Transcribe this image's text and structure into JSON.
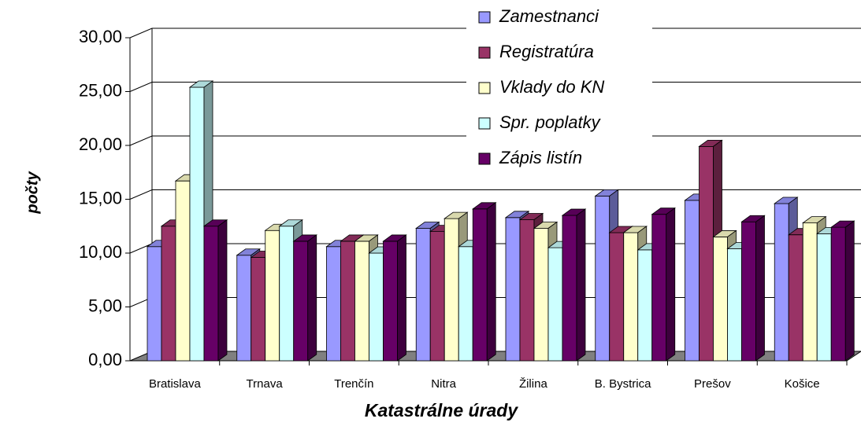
{
  "chart_data": {
    "type": "bar3d",
    "y_label": "počty",
    "x_label": "Katastrálne úrady",
    "categories": [
      "Bratislava",
      "Trnava",
      "Trenčín",
      "Nitra",
      "Žilina",
      "B. Bystrica",
      "Prešov",
      "Košice"
    ],
    "series": [
      {
        "name": "Zamestnanci",
        "color": "#9999ff",
        "values": [
          10.6,
          9.8,
          10.6,
          12.3,
          13.3,
          15.3,
          14.9,
          14.6
        ]
      },
      {
        "name": "Registratúra",
        "color": "#993366",
        "values": [
          12.5,
          9.6,
          11.1,
          12.0,
          13.1,
          11.9,
          19.9,
          11.7
        ]
      },
      {
        "name": "Vklady do KN",
        "color": "#ffffcc",
        "values": [
          16.7,
          12.1,
          11.1,
          13.2,
          12.3,
          11.9,
          11.5,
          12.8
        ]
      },
      {
        "name": "Spr. poplatky",
        "color": "#ccffff",
        "values": [
          25.4,
          12.5,
          10.0,
          10.6,
          10.5,
          10.3,
          10.4,
          11.8
        ]
      },
      {
        "name": "Zápis listín",
        "color": "#660066",
        "values": [
          12.5,
          11.1,
          11.1,
          14.1,
          13.5,
          13.6,
          12.9,
          12.4
        ]
      }
    ],
    "ylim": [
      0,
      30
    ],
    "yticks": [
      {
        "value": 0,
        "label": "0,00"
      },
      {
        "value": 5,
        "label": "5,00"
      },
      {
        "value": 10,
        "label": "10,00"
      },
      {
        "value": 15,
        "label": "15,00"
      },
      {
        "value": 20,
        "label": "20,00"
      },
      {
        "value": 25,
        "label": "25,00"
      },
      {
        "value": 30,
        "label": "30,00"
      }
    ],
    "grid": true
  }
}
